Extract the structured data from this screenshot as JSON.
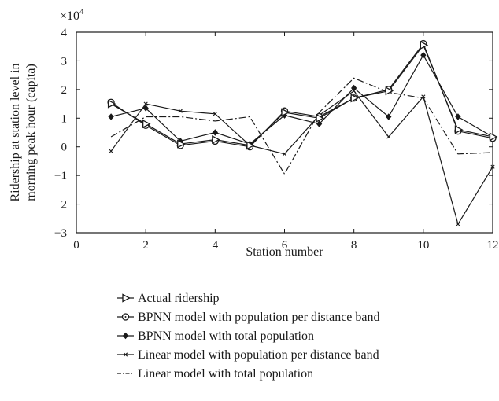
{
  "chart_data": {
    "type": "line",
    "xlabel": "Station number",
    "ylabel_line1": "Ridership at station level in",
    "ylabel_line2": "morning peak hour (capita)",
    "y_multiplier": "×10",
    "y_multiplier_exp": "4",
    "xlim": [
      0,
      12
    ],
    "ylim": [
      -3,
      4
    ],
    "xticks": [
      0,
      2,
      4,
      6,
      8,
      10,
      12
    ],
    "yticks": [
      -3,
      -2,
      -1,
      0,
      1,
      2,
      3,
      4
    ],
    "grid": false,
    "legend_position": "bottom",
    "x": [
      1,
      2,
      3,
      4,
      5,
      6,
      7,
      8,
      9,
      10,
      11,
      12
    ],
    "series": [
      {
        "name": "Actual ridership",
        "marker": "triangle-right",
        "dash": "solid",
        "values": [
          1.5,
          0.8,
          0.1,
          0.25,
          0.05,
          1.2,
          1.0,
          1.7,
          1.95,
          3.55,
          0.6,
          0.35
        ]
      },
      {
        "name": "BPNN model with population per distance band",
        "marker": "circle",
        "dash": "solid",
        "values": [
          1.55,
          0.75,
          0.05,
          0.2,
          0.0,
          1.25,
          1.05,
          1.7,
          2.0,
          3.6,
          0.55,
          0.3
        ]
      },
      {
        "name": "BPNN model with total population",
        "marker": "diamond",
        "dash": "solid",
        "values": [
          1.05,
          1.35,
          0.2,
          0.5,
          0.1,
          1.1,
          0.8,
          2.05,
          1.05,
          3.2,
          1.05,
          0.35
        ]
      },
      {
        "name": "Linear model with population per distance band",
        "marker": "x",
        "dash": "solid",
        "values": [
          -0.15,
          1.5,
          1.25,
          1.15,
          0.05,
          -0.25,
          1.1,
          1.95,
          0.35,
          1.75,
          -2.7,
          -0.7
        ]
      },
      {
        "name": "Linear model with total population",
        "marker": "none",
        "dash": "dashdot",
        "values": [
          0.35,
          1.05,
          1.05,
          0.9,
          1.05,
          -0.95,
          1.2,
          2.4,
          1.9,
          1.7,
          -0.25,
          -0.2
        ]
      }
    ]
  }
}
